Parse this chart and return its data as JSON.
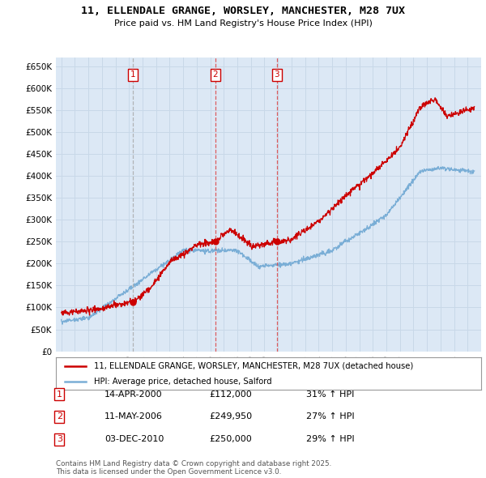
{
  "title": "11, ELLENDALE GRANGE, WORSLEY, MANCHESTER, M28 7UX",
  "subtitle": "Price paid vs. HM Land Registry's House Price Index (HPI)",
  "property_label": "11, ELLENDALE GRANGE, WORSLEY, MANCHESTER, M28 7UX (detached house)",
  "hpi_label": "HPI: Average price, detached house, Salford",
  "footer": "Contains HM Land Registry data © Crown copyright and database right 2025.\nThis data is licensed under the Open Government Licence v3.0.",
  "transactions": [
    {
      "num": 1,
      "date": "14-APR-2000",
      "price": "£112,000",
      "hpi": "31% ↑ HPI",
      "year": 2000.29,
      "value": 112000,
      "line_style": "dashed_gray"
    },
    {
      "num": 2,
      "date": "11-MAY-2006",
      "price": "£249,950",
      "hpi": "27% ↑ HPI",
      "year": 2006.37,
      "value": 249950,
      "line_style": "dashed_red"
    },
    {
      "num": 3,
      "date": "03-DEC-2010",
      "price": "£250,000",
      "hpi": "29% ↑ HPI",
      "year": 2010.92,
      "value": 250000,
      "line_style": "dashed_red"
    }
  ],
  "ylim": [
    0,
    670000
  ],
  "yticks": [
    0,
    50000,
    100000,
    150000,
    200000,
    250000,
    300000,
    350000,
    400000,
    450000,
    500000,
    550000,
    600000,
    650000
  ],
  "property_color": "#cc0000",
  "hpi_color": "#7aaed6",
  "grid_color": "#c8d8e8",
  "background_color": "#dce8f5",
  "plot_bg_color": "#ffffff",
  "vline_red": "#dd4444",
  "vline_gray": "#aaaaaa"
}
